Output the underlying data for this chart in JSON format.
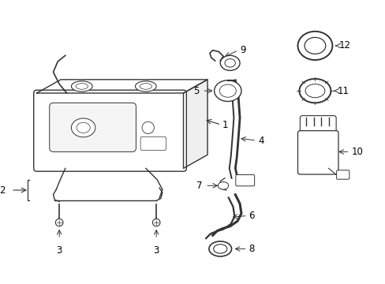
{
  "background_color": "#ffffff",
  "line_color": "#333333",
  "fig_width": 4.89,
  "fig_height": 3.6,
  "dpi": 100
}
